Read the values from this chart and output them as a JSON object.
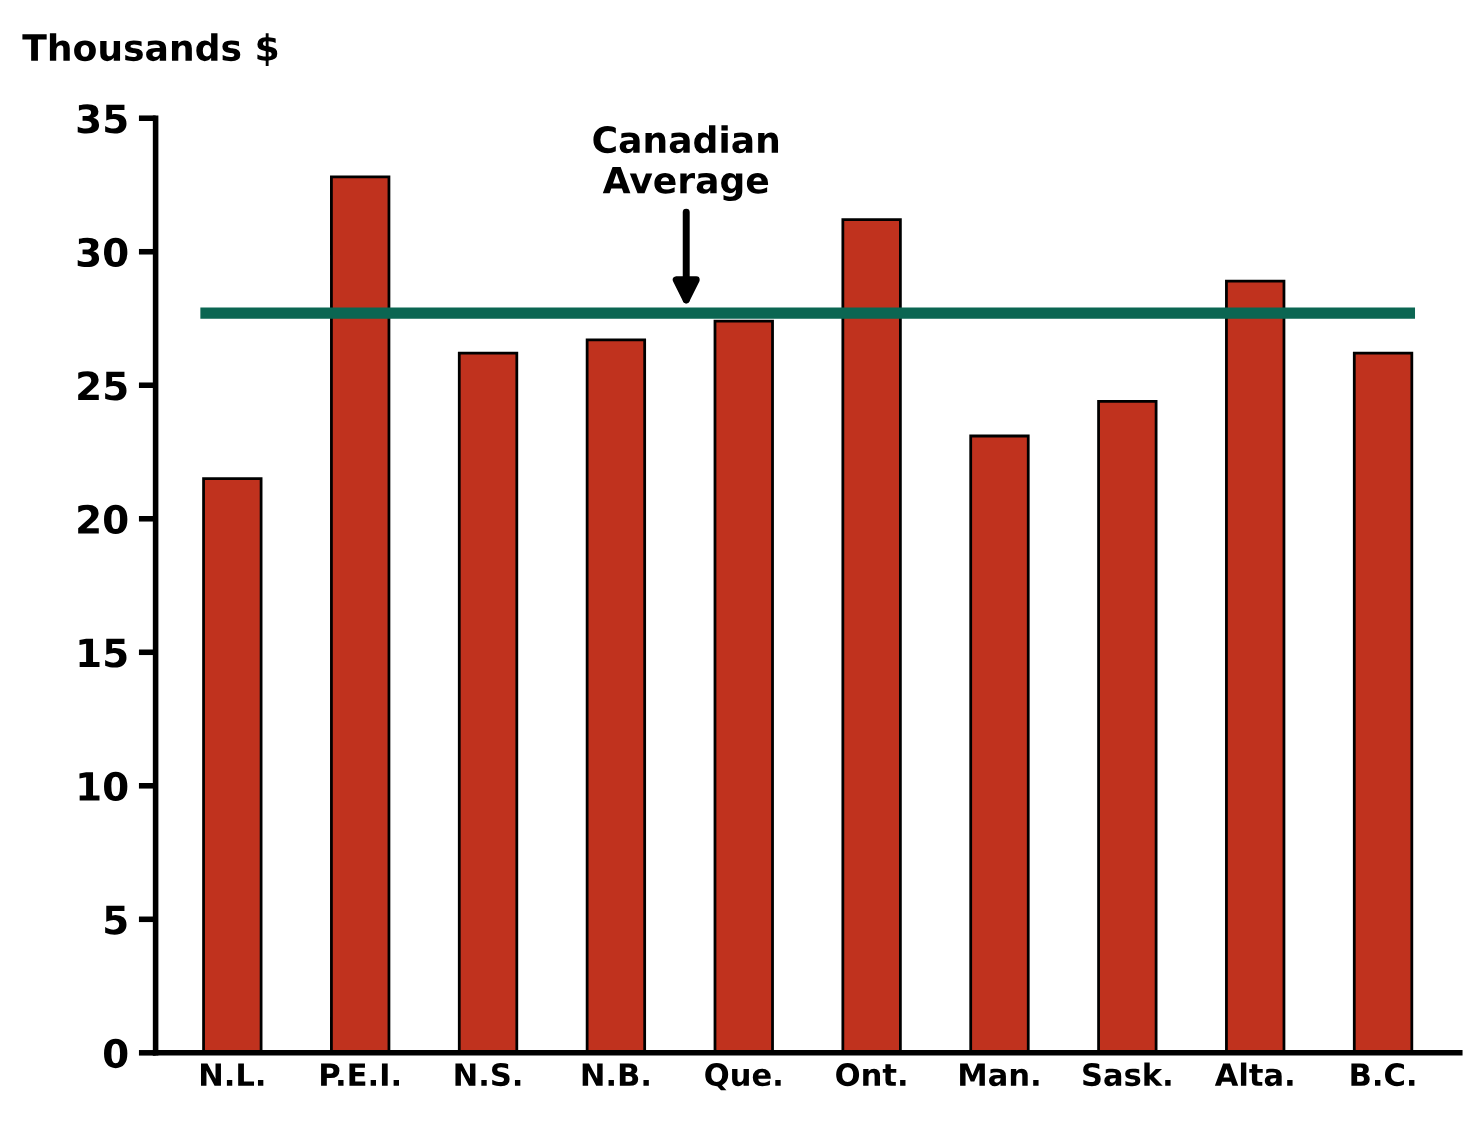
{
  "chart_data": {
    "type": "bar",
    "ylabel": "Thousands $",
    "categories": [
      "N.L.",
      "P.E.I.",
      "N.S.",
      "N.B.",
      "Que.",
      "Ont.",
      "Man.",
      "Sask.",
      "Alta.",
      "B.C."
    ],
    "values": [
      21.5,
      32.8,
      26.2,
      26.7,
      27.4,
      31.2,
      23.1,
      24.4,
      28.9,
      26.2
    ],
    "color": "#c0321e",
    "ylim": [
      0,
      35
    ],
    "yticks": [
      0,
      5,
      10,
      15,
      20,
      25,
      30,
      35
    ],
    "grid": false,
    "ref_lines": [
      {
        "axis": "y",
        "value": 27.7,
        "label": "Canadian\nAverage",
        "color": "#0b6652",
        "line_style": "solid"
      }
    ]
  }
}
